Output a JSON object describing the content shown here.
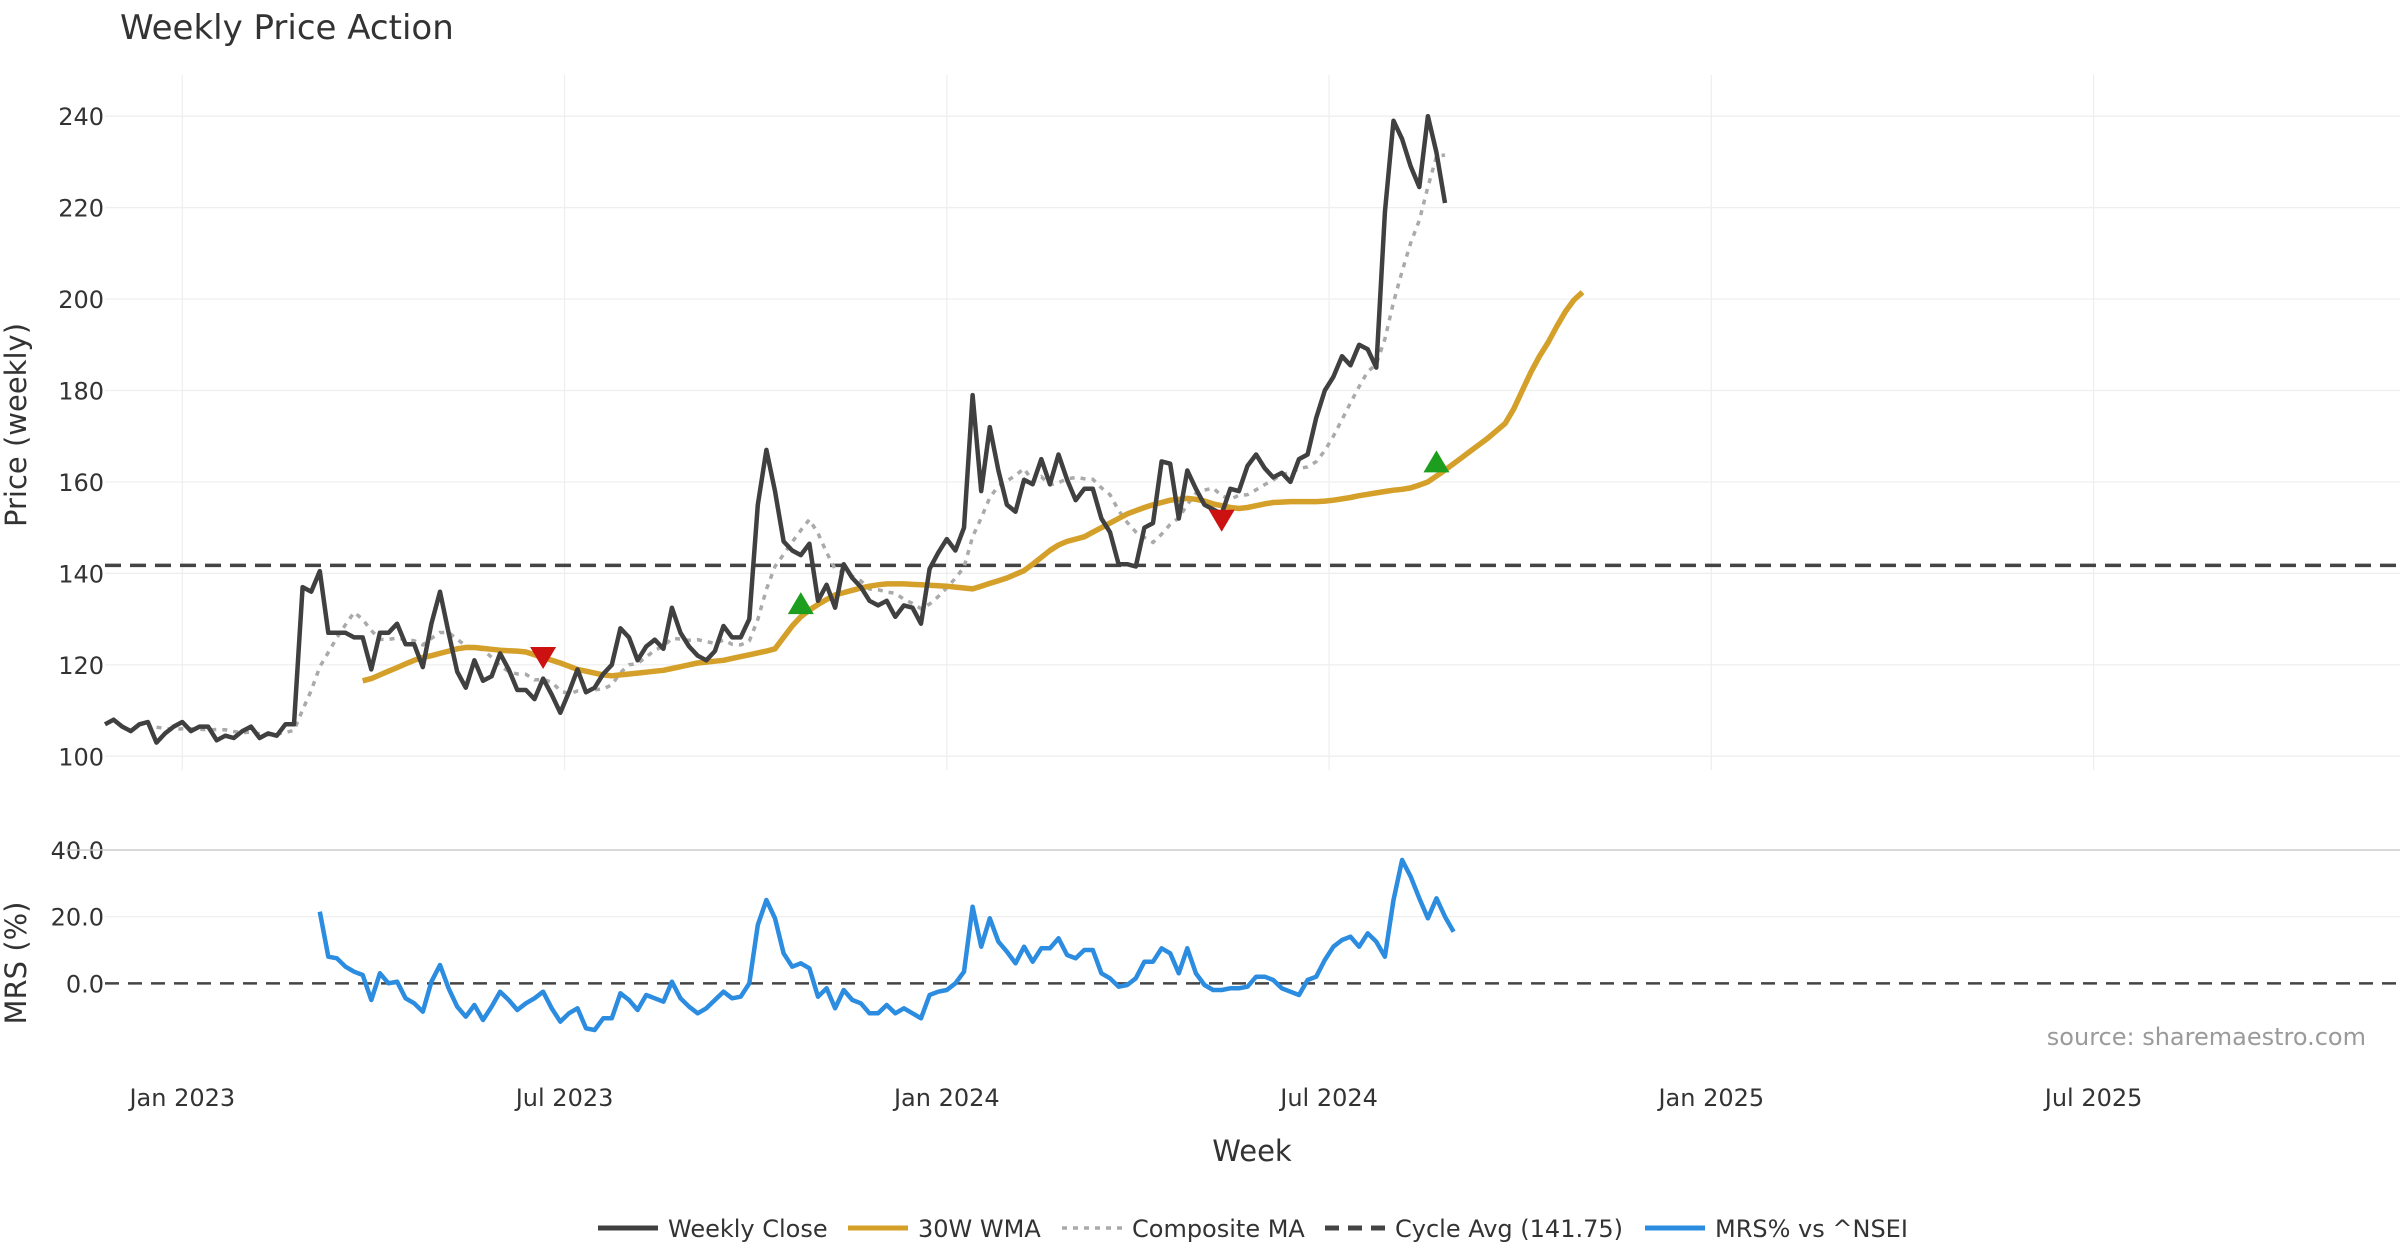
{
  "chart_data": {
    "type": "line",
    "title": "Weekly Price Action",
    "xlabel": "Week",
    "x_ticks": [
      "Jan 2023",
      "Jul 2023",
      "Jan 2024",
      "Jul 2024",
      "Jan 2025",
      "Jul 2025"
    ],
    "source": "source: sharemaestro.com",
    "colors": {
      "weekly_close": "#404040",
      "wma": "#d4a02a",
      "composite": "#aaaaaa",
      "cycle": "#444444",
      "mrs": "#2b8ce0",
      "buy": "#1e9e1e",
      "sell": "#cc1111",
      "grid": "#eeeeee"
    },
    "price_panel": {
      "ylabel": "Price (weekly)",
      "ylim": [
        97,
        249
      ],
      "yticks": [
        "100",
        "120",
        "140",
        "160",
        "180",
        "200",
        "220",
        "240"
      ],
      "cycle_avg": 141.75,
      "weekly_close": [
        107,
        108,
        106.5,
        105.5,
        107,
        107.5,
        103,
        105,
        106.5,
        107.5,
        105.5,
        106.5,
        106.5,
        103.5,
        104.5,
        104,
        105.5,
        106.5,
        104,
        105,
        104.5,
        107,
        107,
        137,
        136,
        140.5,
        127,
        127,
        127,
        126,
        126,
        119,
        127,
        127,
        129,
        124.5,
        124.5,
        119.5,
        129,
        136,
        127,
        118.5,
        115,
        121,
        116.5,
        117.5,
        122.5,
        119,
        114.5,
        114.5,
        112.5,
        117,
        113.5,
        109.5,
        114,
        119,
        114,
        115,
        118,
        120,
        128,
        126,
        121,
        124,
        125.5,
        123.5,
        132.5,
        127,
        124,
        122,
        121,
        123,
        128.5,
        126,
        126,
        130,
        155,
        167,
        158,
        147,
        145,
        144,
        146.5,
        134,
        137.5,
        132.5,
        142,
        139,
        137,
        134,
        133,
        134,
        130.5,
        133,
        132.5,
        129,
        141,
        144.5,
        147.5,
        145,
        150,
        179,
        158,
        172,
        162.5,
        155,
        153.5,
        160.5,
        159.5,
        165,
        159.5,
        166,
        160.5,
        156,
        158.5,
        158.5,
        152,
        149,
        142,
        142,
        141.5,
        150,
        151,
        164.5,
        164,
        152,
        162.5,
        158.5,
        155,
        154,
        153,
        158.5,
        158,
        163.5,
        166,
        163,
        161,
        162,
        160,
        165,
        166,
        174,
        180,
        183,
        187.5,
        185.5,
        190,
        189,
        185,
        219,
        239,
        235,
        229,
        224.5,
        240,
        232,
        221
      ],
      "wma_start_index": 30,
      "wma": [
        116.5,
        117,
        117.8,
        118.6,
        119.4,
        120.2,
        121,
        121.6,
        122,
        122.5,
        123,
        123.5,
        123.8,
        123.8,
        123.6,
        123.4,
        123.2,
        123.1,
        123.0,
        122.8,
        122.2,
        121.6,
        121,
        120.4,
        119.7,
        119,
        118.6,
        118.2,
        117.8,
        117.6,
        117.8,
        118,
        118.2,
        118.4,
        118.6,
        118.8,
        119.2,
        119.6,
        120,
        120.4,
        120.6,
        120.8,
        121,
        121.4,
        121.8,
        122.2,
        122.6,
        123,
        123.5,
        126,
        128.5,
        130.5,
        132,
        133.2,
        134.3,
        135.3,
        135.8,
        136.3,
        136.8,
        137.2,
        137.5,
        137.7,
        137.7,
        137.7,
        137.6,
        137.5,
        137.4,
        137.3,
        137.2,
        137.0,
        136.8,
        136.6,
        137.2,
        137.8,
        138.4,
        139,
        139.8,
        140.6,
        142,
        143.5,
        145,
        146.2,
        147,
        147.5,
        148,
        149,
        150,
        151,
        152,
        153,
        153.7,
        154.4,
        155,
        155.5,
        156,
        156.2,
        156.4,
        156.2,
        155.8,
        155.2,
        154.8,
        154.4,
        154.2,
        154.4,
        154.8,
        155.2,
        155.5,
        155.6,
        155.7,
        155.7,
        155.7,
        155.7,
        155.8,
        156,
        156.3,
        156.6,
        157,
        157.3,
        157.6,
        157.9,
        158.2,
        158.4,
        158.7,
        159.3,
        160,
        161.3,
        162.6,
        164,
        165.4,
        166.8,
        168.2,
        169.6,
        171.2,
        172.8,
        176,
        180,
        184,
        187.5,
        190.5,
        194,
        197.2,
        199.8,
        201.5
      ]
    },
    "mrs_panel": {
      "ylabel": "MRS (%)",
      "ylim": [
        -20,
        40
      ],
      "yticks": [
        "0.0",
        "20.0",
        "40.0"
      ],
      "start_index": 25,
      "values": [
        21.5,
        8,
        7.5,
        5,
        3.5,
        2.5,
        -5,
        3,
        0,
        0.5,
        -4.5,
        -6,
        -8.5,
        0.5,
        5.5,
        -1.5,
        -7,
        -10,
        -6.5,
        -11,
        -7,
        -2.5,
        -5,
        -8,
        -6,
        -4.5,
        -2.5,
        -7.5,
        -11.5,
        -9,
        -7.5,
        -13.5,
        -14,
        -10.5,
        -10.5,
        -3,
        -5,
        -8,
        -3.5,
        -4.5,
        -5.5,
        0.5,
        -4.5,
        -7,
        -9,
        -7.5,
        -5,
        -2.5,
        -4.5,
        -4,
        0,
        17.5,
        25,
        19.5,
        9,
        5,
        6,
        4.5,
        -4,
        -1.5,
        -7.5,
        -2,
        -5,
        -6,
        -9,
        -9,
        -6.5,
        -9,
        -7.5,
        -9,
        -10.5,
        -3.5,
        -2.5,
        -2,
        0,
        3.5,
        23,
        11,
        19.5,
        12.5,
        9.5,
        6,
        11,
        6.5,
        10.5,
        10.5,
        13.5,
        8.5,
        7.5,
        10,
        10,
        3,
        1.5,
        -1,
        -0.5,
        1.5,
        6.5,
        6.5,
        10.5,
        9,
        3,
        10.5,
        3,
        -0.5,
        -2,
        -2,
        -1.5,
        -1.5,
        -1,
        2,
        2,
        1,
        -1.5,
        -2.5,
        -3.5,
        1,
        2,
        7,
        11,
        13,
        14,
        11,
        15,
        12.5,
        8,
        25,
        37,
        32,
        25.5,
        19.5,
        25.5,
        20,
        15.5
      ]
    },
    "signals": [
      {
        "type": "sell",
        "index": 51,
        "value": 121.5
      },
      {
        "type": "buy",
        "index": 81,
        "value": 133.5
      },
      {
        "type": "sell",
        "index": 130,
        "value": 151.5
      },
      {
        "type": "buy",
        "index": 155,
        "value": 164.5
      }
    ],
    "legend": [
      {
        "key": "weekly_close",
        "label": "Weekly Close",
        "style": "solid"
      },
      {
        "key": "wma",
        "label": "30W WMA",
        "style": "solid"
      },
      {
        "key": "composite",
        "label": "Composite MA",
        "style": "dotted"
      },
      {
        "key": "cycle",
        "label": "Cycle Avg (141.75)",
        "style": "dashed"
      },
      {
        "key": "mrs",
        "label": "MRS% vs ^NSEI",
        "style": "solid"
      }
    ]
  }
}
